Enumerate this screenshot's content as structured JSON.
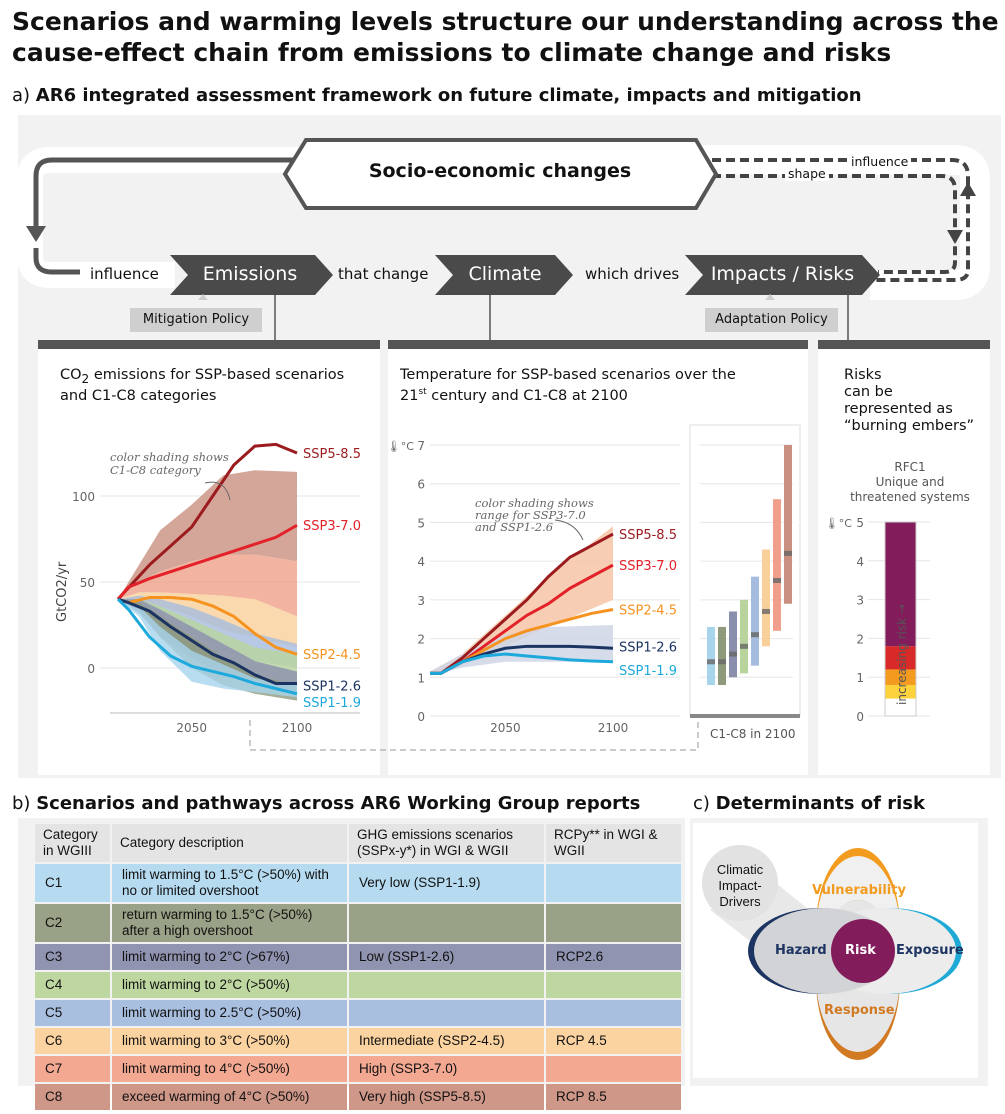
{
  "title": "Scenarios and warming levels structure our understanding across the cause-effect chain from emissions to climate change and risks",
  "section_a": {
    "letter": "a)",
    "title": "AR6 integrated assessment framework on future climate, impacts and mitigation"
  },
  "flow": {
    "socio": "Socio-economic changes",
    "influence_left": "influence",
    "emissions": "Emissions",
    "that_change": "that change",
    "climate": "Climate",
    "which_drives": "which drives",
    "impacts": "Impacts / Risks",
    "influence_right": "influence",
    "shape": "shape",
    "mitigation": "Mitigation Policy",
    "adaptation": "Adaptation Policy"
  },
  "colors": {
    "SSP5-8.5": "#9b1b1e",
    "SSP3-7.0": "#e32129",
    "SSP2-4.5": "#f69320",
    "SSP1-2.6": "#1c3462",
    "SSP1-1.9": "#1ea9dc",
    "C1": "#a8d4ec",
    "C2": "#8f9a7c",
    "C3": "#8b8fae",
    "C4": "#b8d49c",
    "C5": "#a6bcdf",
    "C6": "#f9cf9a",
    "C7": "#f0a08a",
    "C8": "#c99080",
    "risk": "#821c5b"
  },
  "chart_data": [
    {
      "type": "line",
      "title_pre": "CO",
      "title_sub": "2",
      "title_post": " emissions for SSP-based scenarios and C1-C8 categories",
      "ylabel": "GtCO2/yr",
      "ylim": [
        -20,
        135
      ],
      "xlim": [
        2015,
        2100
      ],
      "yticks": [
        0,
        50,
        100
      ],
      "xticks": [
        2050,
        2100
      ],
      "annotation": "color shading shows C1-C8 category",
      "series": [
        {
          "name": "SSP5-8.5",
          "x": [
            2015,
            2030,
            2050,
            2060,
            2070,
            2080,
            2090,
            2100
          ],
          "y": [
            40,
            60,
            82,
            100,
            118,
            129,
            130,
            125
          ]
        },
        {
          "name": "SSP3-7.0",
          "x": [
            2015,
            2020,
            2030,
            2050,
            2070,
            2090,
            2100
          ],
          "y": [
            40,
            47,
            52,
            60,
            68,
            76,
            83
          ]
        },
        {
          "name": "SSP2-4.5",
          "x": [
            2015,
            2020,
            2030,
            2040,
            2050,
            2060,
            2070,
            2080,
            2090,
            2100
          ],
          "y": [
            40,
            38,
            41,
            41,
            40,
            36,
            30,
            20,
            12,
            8
          ]
        },
        {
          "name": "SSP1-2.6",
          "x": [
            2015,
            2020,
            2030,
            2040,
            2050,
            2060,
            2070,
            2080,
            2090,
            2100
          ],
          "y": [
            40,
            38,
            33,
            24,
            16,
            8,
            3,
            -4,
            -9,
            -9
          ]
        },
        {
          "name": "SSP1-1.9",
          "x": [
            2015,
            2020,
            2030,
            2040,
            2050,
            2060,
            2070,
            2080,
            2090,
            2100
          ],
          "y": [
            40,
            34,
            18,
            7,
            1,
            -2,
            -5,
            -9,
            -12,
            -15
          ]
        }
      ],
      "bands": {
        "x": [
          2015,
          2025,
          2035,
          2050,
          2065,
          2080,
          2100
        ],
        "categories": [
          {
            "name": "C8",
            "lo": [
              40,
              50,
              56,
              62,
              66,
              66,
              62
            ],
            "hi": [
              40,
              60,
              80,
              95,
              112,
              115,
              114
            ]
          },
          {
            "name": "C7",
            "lo": [
              40,
              44,
              44,
              43,
              42,
              40,
              30
            ],
            "hi": [
              40,
              50,
              56,
              62,
              66,
              66,
              62
            ]
          },
          {
            "name": "C6",
            "lo": [
              40,
              40,
              36,
              30,
              22,
              18,
              12
            ],
            "hi": [
              40,
              44,
              44,
              43,
              42,
              40,
              30
            ]
          },
          {
            "name": "C5",
            "lo": [
              40,
              36,
              28,
              20,
              10,
              4,
              0
            ],
            "hi": [
              40,
              42,
              40,
              35,
              28,
              20,
              14
            ]
          },
          {
            "name": "C4",
            "lo": [
              40,
              34,
              22,
              10,
              0,
              -6,
              -10
            ],
            "hi": [
              40,
              40,
              36,
              28,
              20,
              12,
              8
            ]
          },
          {
            "name": "C3",
            "lo": [
              40,
              32,
              18,
              6,
              -4,
              -10,
              -14
            ],
            "hi": [
              40,
              40,
              34,
              24,
              14,
              4,
              -2
            ]
          },
          {
            "name": "C2",
            "lo": [
              40,
              34,
              18,
              0,
              -10,
              -15,
              -19
            ],
            "hi": [
              40,
              38,
              30,
              18,
              6,
              -4,
              -10
            ]
          },
          {
            "name": "C1",
            "lo": [
              40,
              30,
              10,
              -8,
              -12,
              -14,
              -17
            ],
            "hi": [
              40,
              36,
              24,
              10,
              2,
              -6,
              -10
            ]
          }
        ]
      }
    },
    {
      "type": "line",
      "title_l1": "Temperature for SSP-based scenarios over the",
      "title_l2a": "21",
      "title_sup": "st",
      "title_l2b": " century and C1-C8 at 2100",
      "ylabel": "°C",
      "ylim": [
        0,
        7
      ],
      "xlim": [
        2015,
        2100
      ],
      "yticks": [
        0,
        1,
        2,
        3,
        4,
        5,
        6,
        7
      ],
      "xticks": [
        2050,
        2100
      ],
      "annotation": "color shading shows range for SSP3-7.0 and SSP1-2.6",
      "c_label": "C1-C8 in 2100",
      "series": [
        {
          "name": "SSP5-8.5",
          "x": [
            2015,
            2020,
            2030,
            2040,
            2050,
            2060,
            2070,
            2080,
            2090,
            2100
          ],
          "y": [
            1.1,
            1.1,
            1.5,
            2.0,
            2.5,
            3.0,
            3.6,
            4.1,
            4.4,
            4.7
          ]
        },
        {
          "name": "SSP3-7.0",
          "x": [
            2015,
            2020,
            2030,
            2040,
            2050,
            2060,
            2070,
            2080,
            2090,
            2100
          ],
          "y": [
            1.1,
            1.1,
            1.4,
            1.8,
            2.2,
            2.6,
            2.9,
            3.3,
            3.6,
            3.9
          ]
        },
        {
          "name": "SSP2-4.5",
          "x": [
            2015,
            2020,
            2030,
            2040,
            2050,
            2060,
            2070,
            2080,
            2090,
            2100
          ],
          "y": [
            1.1,
            1.1,
            1.4,
            1.7,
            2.0,
            2.2,
            2.35,
            2.5,
            2.65,
            2.75
          ]
        },
        {
          "name": "SSP1-2.6",
          "x": [
            2015,
            2020,
            2030,
            2040,
            2050,
            2060,
            2070,
            2080,
            2090,
            2100
          ],
          "y": [
            1.1,
            1.1,
            1.4,
            1.6,
            1.75,
            1.8,
            1.8,
            1.8,
            1.78,
            1.75
          ]
        },
        {
          "name": "SSP1-1.9",
          "x": [
            2015,
            2020,
            2030,
            2040,
            2050,
            2060,
            2070,
            2080,
            2090,
            2100
          ],
          "y": [
            1.1,
            1.1,
            1.4,
            1.55,
            1.6,
            1.55,
            1.5,
            1.45,
            1.42,
            1.4
          ]
        }
      ],
      "ranges": [
        {
          "name": "SSP3-7.0",
          "x": [
            2015,
            2030,
            2050,
            2070,
            2100
          ],
          "lo": [
            1.05,
            1.3,
            1.8,
            2.3,
            3.0
          ],
          "hi": [
            1.15,
            1.6,
            2.6,
            3.6,
            4.9
          ],
          "color": "#f6c6a6"
        },
        {
          "name": "SSP1-2.6",
          "x": [
            2015,
            2030,
            2050,
            2070,
            2100
          ],
          "lo": [
            1.05,
            1.25,
            1.4,
            1.4,
            1.4
          ],
          "hi": [
            1.15,
            1.6,
            2.1,
            2.3,
            2.35
          ],
          "color": "#cfd6e6"
        }
      ],
      "c_bars": [
        {
          "name": "C1",
          "lo": 0.8,
          "median": 1.4,
          "hi": 2.3
        },
        {
          "name": "C2",
          "lo": 0.8,
          "median": 1.4,
          "hi": 2.3
        },
        {
          "name": "C3",
          "lo": 1.0,
          "median": 1.6,
          "hi": 2.7
        },
        {
          "name": "C4",
          "lo": 1.1,
          "median": 1.8,
          "hi": 3.0
        },
        {
          "name": "C5",
          "lo": 1.3,
          "median": 2.1,
          "hi": 3.6
        },
        {
          "name": "C6",
          "lo": 1.8,
          "median": 2.7,
          "hi": 4.3
        },
        {
          "name": "C7",
          "lo": 2.2,
          "median": 3.5,
          "hi": 5.6
        },
        {
          "name": "C8",
          "lo": 2.9,
          "median": 4.2,
          "hi": 7.0
        }
      ]
    },
    {
      "type": "bar",
      "title_l1": "Risks",
      "title_l2": "can be",
      "title_l3": "represented as",
      "title_l4": "“burning embers”",
      "label1": "RFC1",
      "label2": "Unique and",
      "label3": "threatened systems",
      "ylabel": "°C",
      "ylim": [
        0,
        5
      ],
      "yticks": [
        0,
        1,
        2,
        3,
        4,
        5
      ],
      "arrow_label": "increasing risk →",
      "transitions": [
        {
          "level": "white",
          "from": 0,
          "to": 0.45
        },
        {
          "level": "yellow",
          "from": 0.45,
          "to": 0.8
        },
        {
          "level": "orange",
          "from": 0.8,
          "to": 1.2
        },
        {
          "level": "red",
          "from": 1.2,
          "to": 1.8
        },
        {
          "level": "purple",
          "from": 1.8,
          "to": 5
        }
      ]
    }
  ],
  "section_b": {
    "letter": "b)",
    "title": "Scenarios and pathways across AR6 Working Group reports"
  },
  "table": {
    "headers": [
      "Category in WGIII",
      "Category description",
      "GHG emissions scenarios (SSPx-y*) in WGI & WGII",
      "RCPy** in WGI & WGII"
    ],
    "rows": [
      {
        "cat": "C1",
        "desc": "limit warming to 1.5°C (>50%) with no or limited overshoot",
        "ghg": "Very low (SSP1-1.9)",
        "rcp": "",
        "bg": "#b6daef"
      },
      {
        "cat": "C2",
        "desc": "return warming to 1.5°C (>50%) after a high overshoot",
        "ghg": "",
        "rcp": "",
        "bg": "#99a286"
      },
      {
        "cat": "C3",
        "desc": "limit warming to 2°C (>67%)",
        "ghg": "Low (SSP1-2.6)",
        "rcp": "RCP2.6",
        "bg": "#9094b1"
      },
      {
        "cat": "C4",
        "desc": "limit warming to 2°C (>50%)",
        "ghg": "",
        "rcp": "",
        "bg": "#bed7a0"
      },
      {
        "cat": "C5",
        "desc": "limit warming to 2.5°C (>50%)",
        "ghg": "",
        "rcp": "",
        "bg": "#a9bfe0"
      },
      {
        "cat": "C6",
        "desc": "limit warming to 3°C (>50%)",
        "ghg": "Intermediate (SSP2-4.5)",
        "rcp": "RCP 4.5",
        "bg": "#fbd3a0"
      },
      {
        "cat": "C7",
        "desc": "limit warming to 4°C (>50%)",
        "ghg": "High (SSP3-7.0)",
        "rcp": "",
        "bg": "#f3a892"
      },
      {
        "cat": "C8",
        "desc": "exceed warming of 4°C (>50%)",
        "ghg": "Very high (SSP5-8.5)",
        "rcp": "RCP 8.5",
        "bg": "#cf9788"
      }
    ]
  },
  "section_c": {
    "letter": "c)",
    "title": "Determinants of risk",
    "cid": "Climatic Impact-Drivers",
    "vulnerability": "Vulnerability",
    "hazard": "Hazard",
    "risk": "Risk",
    "exposure": "Exposure",
    "response": "Response"
  }
}
